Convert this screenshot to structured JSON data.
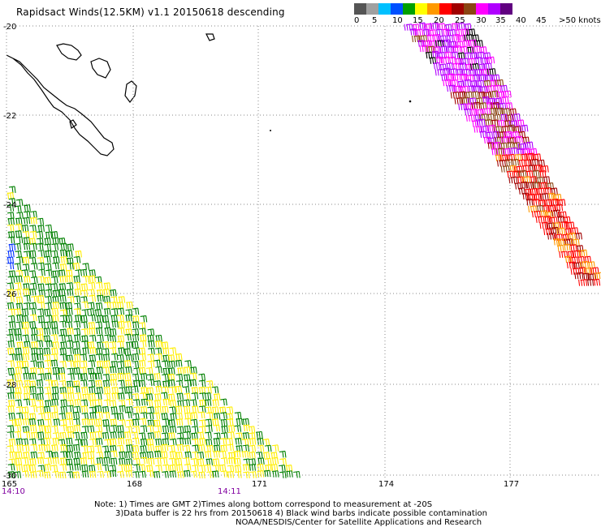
{
  "title": "Rapidsact Winds(12.5KM) v1.1 20150618 descending",
  "legend": {
    "labels": [
      "0",
      "5",
      "10",
      "15",
      "20",
      "25",
      "30",
      "35",
      "40",
      "45",
      ">50 knots"
    ],
    "colors": [
      "#555555",
      "#a0a0a0",
      "#00c0ff",
      "#0050ff",
      "#00a000",
      "#ffff00",
      "#ff9900",
      "#ff0000",
      "#a00000",
      "#8b4513",
      "#ff00ff",
      "#b000ff",
      "#600080"
    ]
  },
  "map": {
    "lon_labels": [
      "165",
      "168",
      "171",
      "174",
      "177"
    ],
    "lat_labels": [
      "-20",
      "-22",
      "-24",
      "-26",
      "-28",
      "-30"
    ],
    "time_labels": [
      "14:10",
      "14:11"
    ],
    "colors": {
      "grid": "#888888",
      "coast": "#000000"
    }
  },
  "notes": {
    "line1": "Note: 1) Times are GMT 2)Times along bottom correspond to measurement at -20S",
    "line2": "3)Data buffer is 22 hrs from 20150618 4) Black wind barbs indicate possible contamination",
    "line3": "NOAA/NESDIS/Center for Satellite Applications and Research"
  }
}
